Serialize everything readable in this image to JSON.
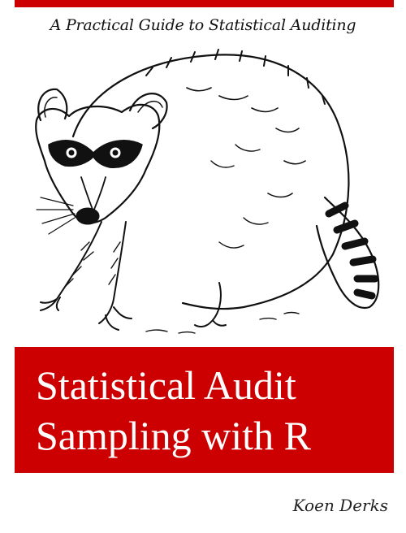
{
  "cover": {
    "tagline": "A Practical Guide to Statistical Auditing",
    "title_line1": "Statistical Audit",
    "title_line2": "Sampling with R",
    "author": "Koen Derks",
    "illustration": "raccoon-engraving",
    "accent_color": "#cc0000"
  }
}
